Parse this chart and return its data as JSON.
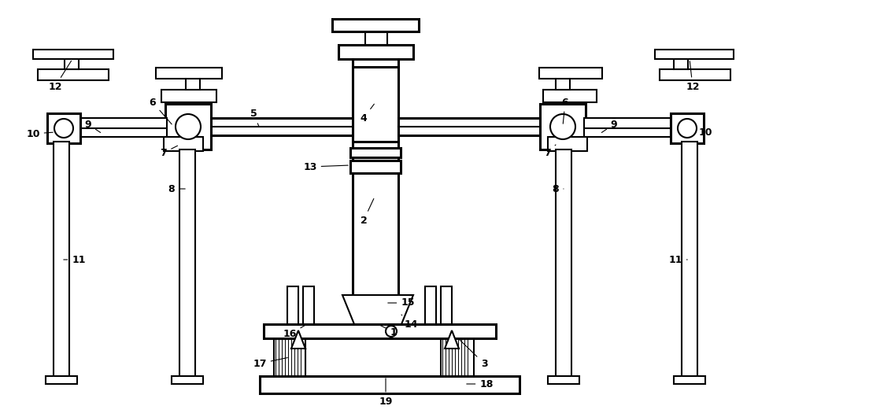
{
  "line_color": "#000000",
  "bg_color": "#ffffff",
  "lw": 1.5,
  "tlw": 2.2,
  "fig_width": 11.04,
  "fig_height": 5.3
}
